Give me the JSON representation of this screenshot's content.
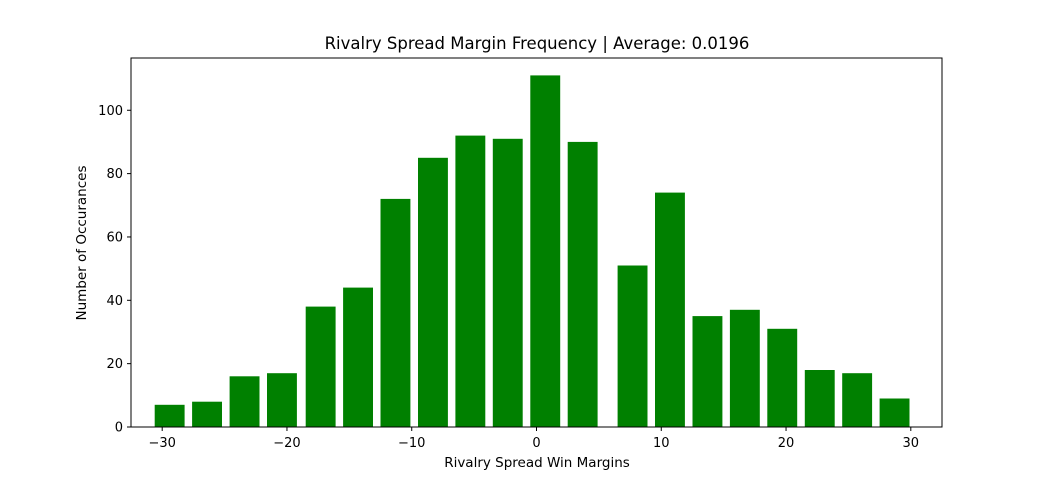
{
  "chart_data": {
    "type": "bar",
    "title": "Rivalry Spread Margin Frequency | Average: 0.0196",
    "xlabel": "Rivalry Spread Win Margins",
    "ylabel": "Number of Occurances",
    "bar_color": "#008000",
    "x": [
      -29.4,
      -26.4,
      -23.4,
      -20.4,
      -17.3,
      -14.3,
      -11.3,
      -8.3,
      -5.3,
      -2.3,
      0.7,
      3.7,
      7.7,
      10.7,
      13.7,
      16.7,
      19.7,
      22.7,
      25.7,
      28.7
    ],
    "values": [
      7,
      8,
      16,
      17,
      38,
      44,
      72,
      85,
      92,
      91,
      111,
      90,
      51,
      74,
      35,
      37,
      31,
      18,
      17,
      9
    ],
    "bar_width": 2.4,
    "xlim": [
      -32.5,
      32.5
    ],
    "ylim": [
      0,
      116.5
    ],
    "xticks": [
      -30,
      -20,
      -10,
      0,
      10,
      20,
      30
    ],
    "xtick_labels": [
      "−30",
      "−20",
      "−10",
      "0",
      "10",
      "20",
      "30"
    ],
    "yticks": [
      0,
      20,
      40,
      60,
      80,
      100
    ],
    "ytick_labels": [
      "0",
      "20",
      "40",
      "60",
      "80",
      "100"
    ],
    "grid": false,
    "legend": "none"
  }
}
